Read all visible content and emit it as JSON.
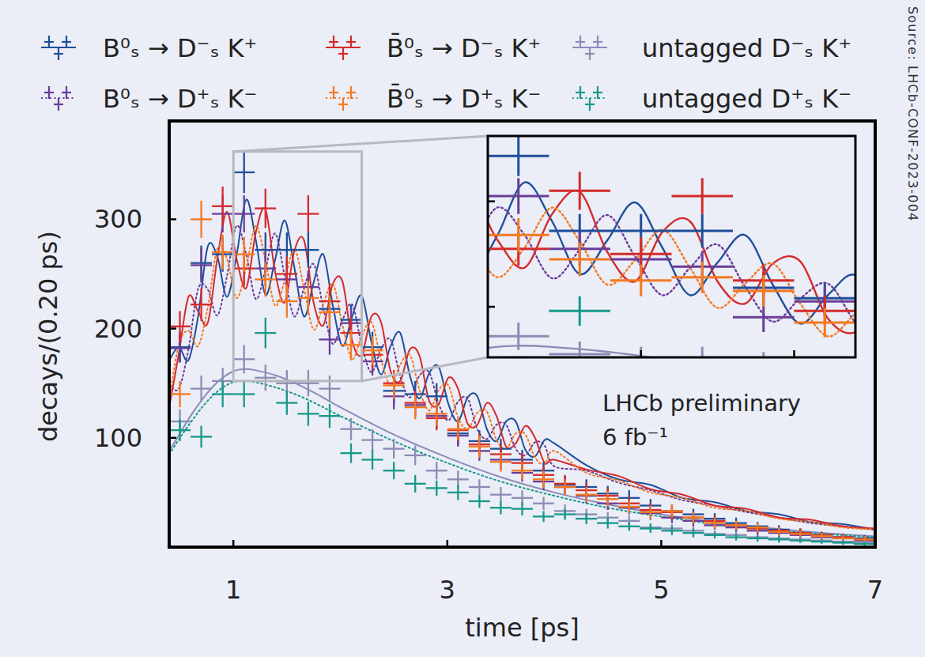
{
  "chart_data": {
    "type": "scatter",
    "xlabel": "time [ps]",
    "ylabel": "decays/(0.20 ps)",
    "annotations": [
      "LHCb preliminary",
      "6 fb⁻¹"
    ],
    "source": "Source: LHCb-CONF-2023-004",
    "legend": "top",
    "grid": false,
    "xlim": [
      0.4,
      7.0
    ],
    "ylim": [
      0,
      390
    ],
    "xticks": [
      1,
      3,
      5,
      7
    ],
    "yticks": [
      100,
      200,
      300
    ],
    "x": [
      0.5,
      0.7,
      0.9,
      1.1,
      1.3,
      1.5,
      1.7,
      1.9,
      2.1,
      2.3,
      2.5,
      2.7,
      2.9,
      3.1,
      3.3,
      3.5,
      3.7,
      3.9,
      4.1,
      4.3,
      4.5,
      4.7,
      4.9,
      5.1,
      5.3,
      5.5,
      5.7,
      5.9,
      6.1,
      6.3,
      6.5,
      6.7,
      6.9
    ],
    "series": [
      {
        "name": "B⁰ₛ → D⁻ₛ K⁺",
        "color": "#1f4f99",
        "marker": "cross",
        "line_style": "solid",
        "values": [
          183,
          260,
          268,
          343,
          272,
          272,
          272,
          218,
          208,
          183,
          143,
          140,
          138,
          104,
          97,
          90,
          80,
          70,
          57,
          55,
          49,
          45,
          38,
          33,
          30,
          26,
          22,
          19,
          16,
          13,
          11,
          9,
          8
        ],
        "errors": [
          14,
          16,
          16,
          19,
          16,
          16,
          16,
          15,
          14,
          14,
          12,
          12,
          12,
          10,
          10,
          9,
          9,
          8,
          8,
          7,
          7,
          7,
          6,
          6,
          5,
          5,
          5,
          4,
          4,
          4,
          3,
          3,
          3
        ],
        "fit": {
          "x": [
            0.4,
            0.49,
            0.58,
            0.67,
            0.76,
            0.85,
            0.94,
            1.03,
            1.12,
            1.21,
            1.3,
            1.39,
            1.48,
            1.57,
            1.66,
            1.75,
            1.84,
            1.93,
            2.02,
            2.11,
            2.2,
            2.29,
            2.38,
            2.47,
            2.56,
            2.65,
            2.74,
            2.83,
            2.92,
            3.01,
            3.1,
            3.19,
            3.28,
            3.37,
            3.46,
            3.55,
            3.64,
            3.73,
            3.82,
            3.91,
            4.0,
            4.3,
            4.6,
            4.9,
            5.2,
            5.5,
            5.8,
            6.1,
            6.4,
            6.7,
            7.0
          ],
          "values": [
            171,
            183,
            171,
            211,
            275,
            266,
            229,
            267,
            318,
            281,
            231,
            263,
            299,
            256,
            211,
            242,
            268,
            221,
            184,
            211,
            230,
            188,
            158,
            184,
            196,
            157,
            136,
            159,
            165,
            131,
            115,
            137,
            138,
            108,
            97,
            115,
            115,
            89,
            83,
            98,
            95,
            75,
            62,
            57,
            45,
            41,
            33,
            30,
            23,
            21,
            16
          ]
        }
      },
      {
        "name": "B⁰ₛ → D⁺ₛ K⁻",
        "color": "#6b3d99",
        "marker": "cross",
        "line_style": "dotted",
        "values": [
          182,
          258,
          305,
          305,
          255,
          245,
          238,
          190,
          205,
          170,
          138,
          130,
          120,
          102,
          88,
          80,
          68,
          60,
          55,
          47,
          40,
          36,
          31,
          27,
          24,
          20,
          18,
          15,
          13,
          11,
          9,
          8,
          6
        ],
        "errors": [
          13,
          16,
          17,
          17,
          16,
          16,
          15,
          14,
          14,
          13,
          12,
          11,
          11,
          10,
          9,
          9,
          8,
          8,
          7,
          7,
          6,
          6,
          6,
          5,
          5,
          4,
          4,
          4,
          4,
          3,
          3,
          3,
          2
        ],
        "fit": {
          "x": [
            0.4,
            0.49,
            0.58,
            0.67,
            0.76,
            0.85,
            0.94,
            1.03,
            1.12,
            1.21,
            1.3,
            1.39,
            1.48,
            1.57,
            1.66,
            1.75,
            1.84,
            1.93,
            2.02,
            2.11,
            2.2,
            2.29,
            2.38,
            2.47,
            2.56,
            2.65,
            2.74,
            2.83,
            2.92,
            3.01,
            3.1,
            3.19,
            3.28,
            3.37,
            3.46,
            3.55,
            3.64,
            3.73,
            3.82,
            3.91,
            4.0,
            4.3,
            4.6,
            4.9,
            5.2,
            5.5,
            5.8,
            6.1,
            6.4,
            6.7,
            7.0
          ],
          "values": [
            149,
            145,
            181,
            236,
            236,
            212,
            248,
            294,
            268,
            227,
            254,
            287,
            248,
            211,
            237,
            259,
            219,
            186,
            208,
            222,
            185,
            160,
            181,
            190,
            156,
            137,
            157,
            160,
            131,
            116,
            133,
            136,
            108,
            99,
            112,
            112,
            90,
            84,
            96,
            93,
            74,
            70,
            59,
            52,
            43,
            38,
            32,
            27,
            22,
            19,
            16
          ]
        }
      },
      {
        "name": "B̄⁰ₛ → D⁻ₛ K⁺",
        "color": "#d42b2b",
        "marker": "cross",
        "line_style": "solid",
        "values": [
          202,
          222,
          312,
          255,
          310,
          250,
          305,
          225,
          196,
          176,
          150,
          132,
          118,
          107,
          94,
          85,
          77,
          66,
          58,
          52,
          47,
          40,
          34,
          32,
          27,
          24,
          20,
          17,
          15,
          13,
          11,
          9,
          7
        ],
        "errors": [
          14,
          15,
          18,
          16,
          18,
          16,
          17,
          15,
          14,
          13,
          12,
          11,
          11,
          10,
          10,
          9,
          9,
          8,
          8,
          7,
          7,
          6,
          6,
          6,
          5,
          5,
          4,
          4,
          4,
          4,
          3,
          3,
          3
        ],
        "fit": {
          "x": [
            0.4,
            0.49,
            0.58,
            0.67,
            0.76,
            0.85,
            0.94,
            1.03,
            1.12,
            1.21,
            1.3,
            1.39,
            1.48,
            1.57,
            1.66,
            1.75,
            1.84,
            1.93,
            2.02,
            2.11,
            2.2,
            2.29,
            2.38,
            2.47,
            2.56,
            2.65,
            2.74,
            2.83,
            2.92,
            3.01,
            3.1,
            3.19,
            3.28,
            3.37,
            3.46,
            3.55,
            3.64,
            3.73,
            3.82,
            3.91,
            4.0,
            4.3,
            4.6,
            4.9,
            5.2,
            5.5,
            5.8,
            6.1,
            6.4,
            6.7,
            7.0
          ],
          "values": [
            128,
            177,
            229,
            216,
            205,
            264,
            307,
            264,
            237,
            288,
            309,
            252,
            224,
            271,
            281,
            224,
            203,
            241,
            243,
            189,
            176,
            211,
            206,
            161,
            152,
            181,
            175,
            134,
            131,
            155,
            145,
            113,
            112,
            132,
            120,
            92,
            95,
            111,
            100,
            77,
            80,
            71,
            65,
            53,
            48,
            38,
            35,
            27,
            25,
            19,
            17
          ]
        }
      },
      {
        "name": "B̄⁰ₛ → D⁺ₛ K⁻",
        "color": "#f47920",
        "marker": "cross",
        "line_style": "dotted",
        "values": [
          140,
          300,
          270,
          268,
          245,
          225,
          228,
          215,
          185,
          180,
          148,
          128,
          122,
          108,
          92,
          78,
          70,
          62,
          55,
          48,
          44,
          37,
          32,
          33,
          27,
          22,
          20,
          18,
          14,
          12,
          10,
          8,
          7
        ],
        "errors": [
          12,
          17,
          16,
          16,
          16,
          15,
          15,
          15,
          14,
          13,
          12,
          11,
          11,
          10,
          10,
          9,
          8,
          8,
          7,
          7,
          7,
          6,
          6,
          6,
          5,
          5,
          4,
          4,
          4,
          3,
          3,
          3,
          3
        ],
        "fit": {
          "x": [
            0.4,
            0.49,
            0.58,
            0.67,
            0.76,
            0.85,
            0.94,
            1.03,
            1.12,
            1.21,
            1.3,
            1.39,
            1.48,
            1.57,
            1.66,
            1.75,
            1.84,
            1.93,
            2.02,
            2.11,
            2.2,
            2.29,
            2.38,
            2.47,
            2.56,
            2.65,
            2.74,
            2.83,
            2.92,
            3.01,
            3.1,
            3.19,
            3.28,
            3.37,
            3.46,
            3.55,
            3.64,
            3.73,
            3.82,
            3.91,
            4.0,
            4.3,
            4.6,
            4.9,
            5.2,
            5.5,
            5.8,
            6.1,
            6.4,
            6.7,
            7.0
          ],
          "values": [
            135,
            185,
            198,
            184,
            219,
            273,
            264,
            228,
            256,
            294,
            262,
            221,
            244,
            273,
            237,
            199,
            222,
            241,
            203,
            172,
            193,
            206,
            172,
            148,
            167,
            176,
            144,
            125,
            144,
            148,
            119,
            108,
            123,
            124,
            98,
            90,
            104,
            103,
            82,
            76,
            88,
            68,
            61,
            50,
            45,
            36,
            33,
            26,
            23,
            18,
            16
          ]
        }
      },
      {
        "name": "untagged D⁻ₛ K⁺",
        "color": "#8a8db5",
        "marker": "cross",
        "line_style": "solid",
        "values": [
          115,
          145,
          152,
          172,
          155,
          150,
          150,
          145,
          108,
          98,
          90,
          84,
          70,
          62,
          55,
          48,
          45,
          40,
          33,
          30,
          27,
          24,
          18,
          17,
          15,
          12,
          11,
          9,
          8,
          7,
          6,
          5,
          4
        ],
        "errors": [
          11,
          12,
          12,
          13,
          12,
          12,
          12,
          12,
          10,
          10,
          9,
          9,
          8,
          8,
          7,
          7,
          7,
          6,
          6,
          5,
          5,
          5,
          4,
          4,
          4,
          3,
          3,
          3,
          3,
          3,
          2,
          2,
          2
        ],
        "fit": {
          "x": [
            0.4,
            0.5,
            0.6,
            0.7,
            0.8,
            0.9,
            1.0,
            1.1,
            1.2,
            1.4,
            1.6,
            1.8,
            2.0,
            2.5,
            3.0,
            3.5,
            4.0,
            4.5,
            5.0,
            5.5,
            6.0,
            6.5,
            7.0
          ],
          "values": [
            88,
            104,
            120,
            134,
            146,
            155,
            161,
            163,
            162,
            157,
            149,
            139,
            128,
            103,
            82,
            64,
            50,
            39,
            30,
            23,
            17.5,
            13,
            10
          ]
        }
      },
      {
        "name": "untagged D⁺ₛ K⁻",
        "color": "#16998a",
        "marker": "cross",
        "line_style": "dotted",
        "values": [
          107,
          101,
          140,
          140,
          196,
          132,
          122,
          120,
          86,
          80,
          70,
          58,
          54,
          50,
          42,
          36,
          35,
          28,
          30,
          26,
          22,
          19,
          17,
          15,
          13,
          11,
          9,
          8,
          7,
          6,
          5,
          4,
          3
        ],
        "errors": [
          10,
          10,
          12,
          12,
          14,
          11,
          11,
          11,
          9,
          9,
          8,
          8,
          7,
          7,
          6,
          6,
          6,
          5,
          5,
          5,
          5,
          4,
          4,
          4,
          4,
          3,
          3,
          3,
          3,
          2,
          2,
          2,
          2
        ],
        "fit": {
          "x": [
            0.4,
            0.5,
            0.6,
            0.7,
            0.8,
            0.9,
            1.0,
            1.1,
            1.2,
            1.4,
            1.6,
            1.8,
            2.0,
            2.5,
            3.0,
            3.5,
            4.0,
            4.5,
            5.0,
            5.5,
            6.0,
            6.5,
            7.0
          ],
          "values": [
            85,
            100,
            114,
            127,
            138,
            146,
            151,
            152,
            151,
            146,
            139,
            130,
            120,
            97,
            77,
            60,
            47,
            36,
            28,
            21,
            16,
            12,
            9
          ]
        }
      }
    ],
    "inset": {
      "xlim": [
        1.0,
        2.2
      ],
      "ylim": [
        152,
        362
      ],
      "xticks": [
        1.5,
        2.0
      ],
      "yticks": [
        200,
        300
      ],
      "tick_labels": false
    }
  }
}
